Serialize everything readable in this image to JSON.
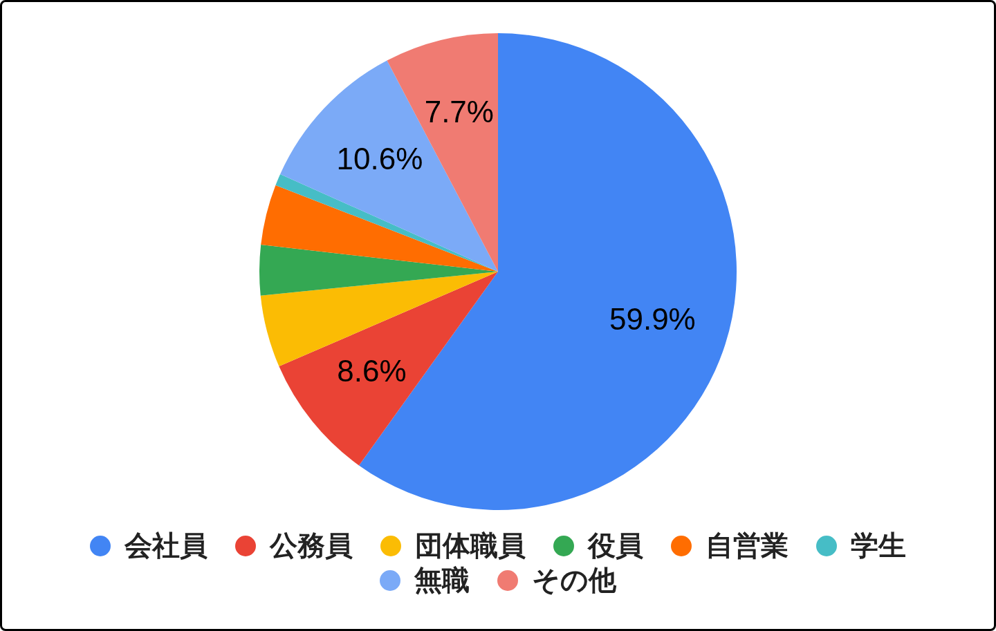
{
  "chart_data": {
    "type": "pie",
    "categories": [
      "会社員",
      "公務員",
      "団体職員",
      "役員",
      "自営業",
      "学生",
      "無職",
      "その他"
    ],
    "values": [
      59.9,
      8.6,
      4.9,
      3.4,
      4.1,
      0.8,
      10.6,
      7.7
    ],
    "colors": [
      "#4285f4",
      "#ea4335",
      "#fbbc04",
      "#34a853",
      "#ff6d01",
      "#46bdc6",
      "#7baaf7",
      "#f07b72"
    ],
    "value_labels": [
      "59.9%",
      "8.6%",
      null,
      null,
      null,
      null,
      "10.6%",
      "7.7%"
    ],
    "legend": "bottom"
  }
}
